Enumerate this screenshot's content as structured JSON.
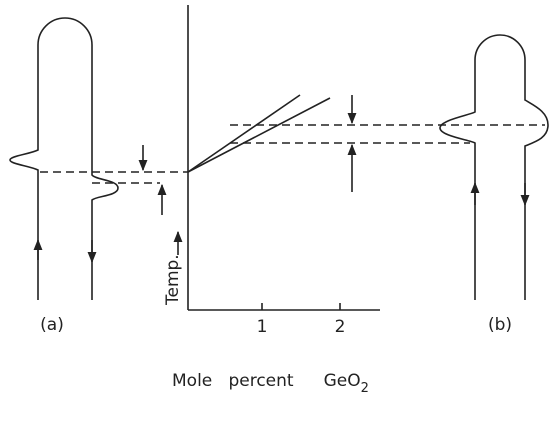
{
  "labels": {
    "a": "(a)",
    "b": "(b)",
    "temp": "Temp.",
    "tick1": "1",
    "tick2": "2",
    "xlabel_words": "Mole   percent",
    "xlabel_compound": "GeO",
    "xlabel_subscript": "2"
  }
}
